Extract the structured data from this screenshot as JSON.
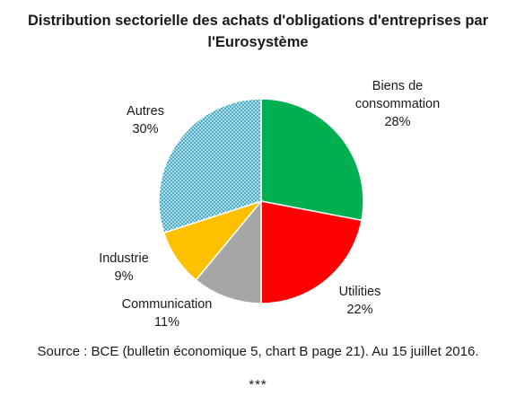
{
  "chart_data": {
    "type": "pie",
    "title_lines": [
      "Distribution sectorielle des achats d'obligations d'entreprises par",
      "l'Eurosystème"
    ],
    "slices": [
      {
        "label": [
          "Biens de",
          "consommation"
        ],
        "pct_label": "28%",
        "value": 28,
        "color": "#00b050",
        "pattern": false
      },
      {
        "label": [
          "Utilities"
        ],
        "pct_label": "22%",
        "value": 22,
        "color": "#ff0000",
        "pattern": false
      },
      {
        "label": [
          "Communication"
        ],
        "pct_label": "11%",
        "value": 11,
        "color": "#a6a6a6",
        "pattern": false
      },
      {
        "label": [
          "Industrie"
        ],
        "pct_label": "9%",
        "value": 9,
        "color": "#ffc000",
        "pattern": false
      },
      {
        "label": [
          "Autres"
        ],
        "pct_label": "30%",
        "value": 30,
        "color": "#4bacc6",
        "pattern": true
      }
    ],
    "start_angle_deg": 0,
    "direction": "clockwise",
    "legend": "none",
    "data_labels": "outside"
  },
  "footer": {
    "source": "Source : BCE (bulletin économique 5, chart B page 21). Au 15 juillet 2016.",
    "stars": "***"
  }
}
